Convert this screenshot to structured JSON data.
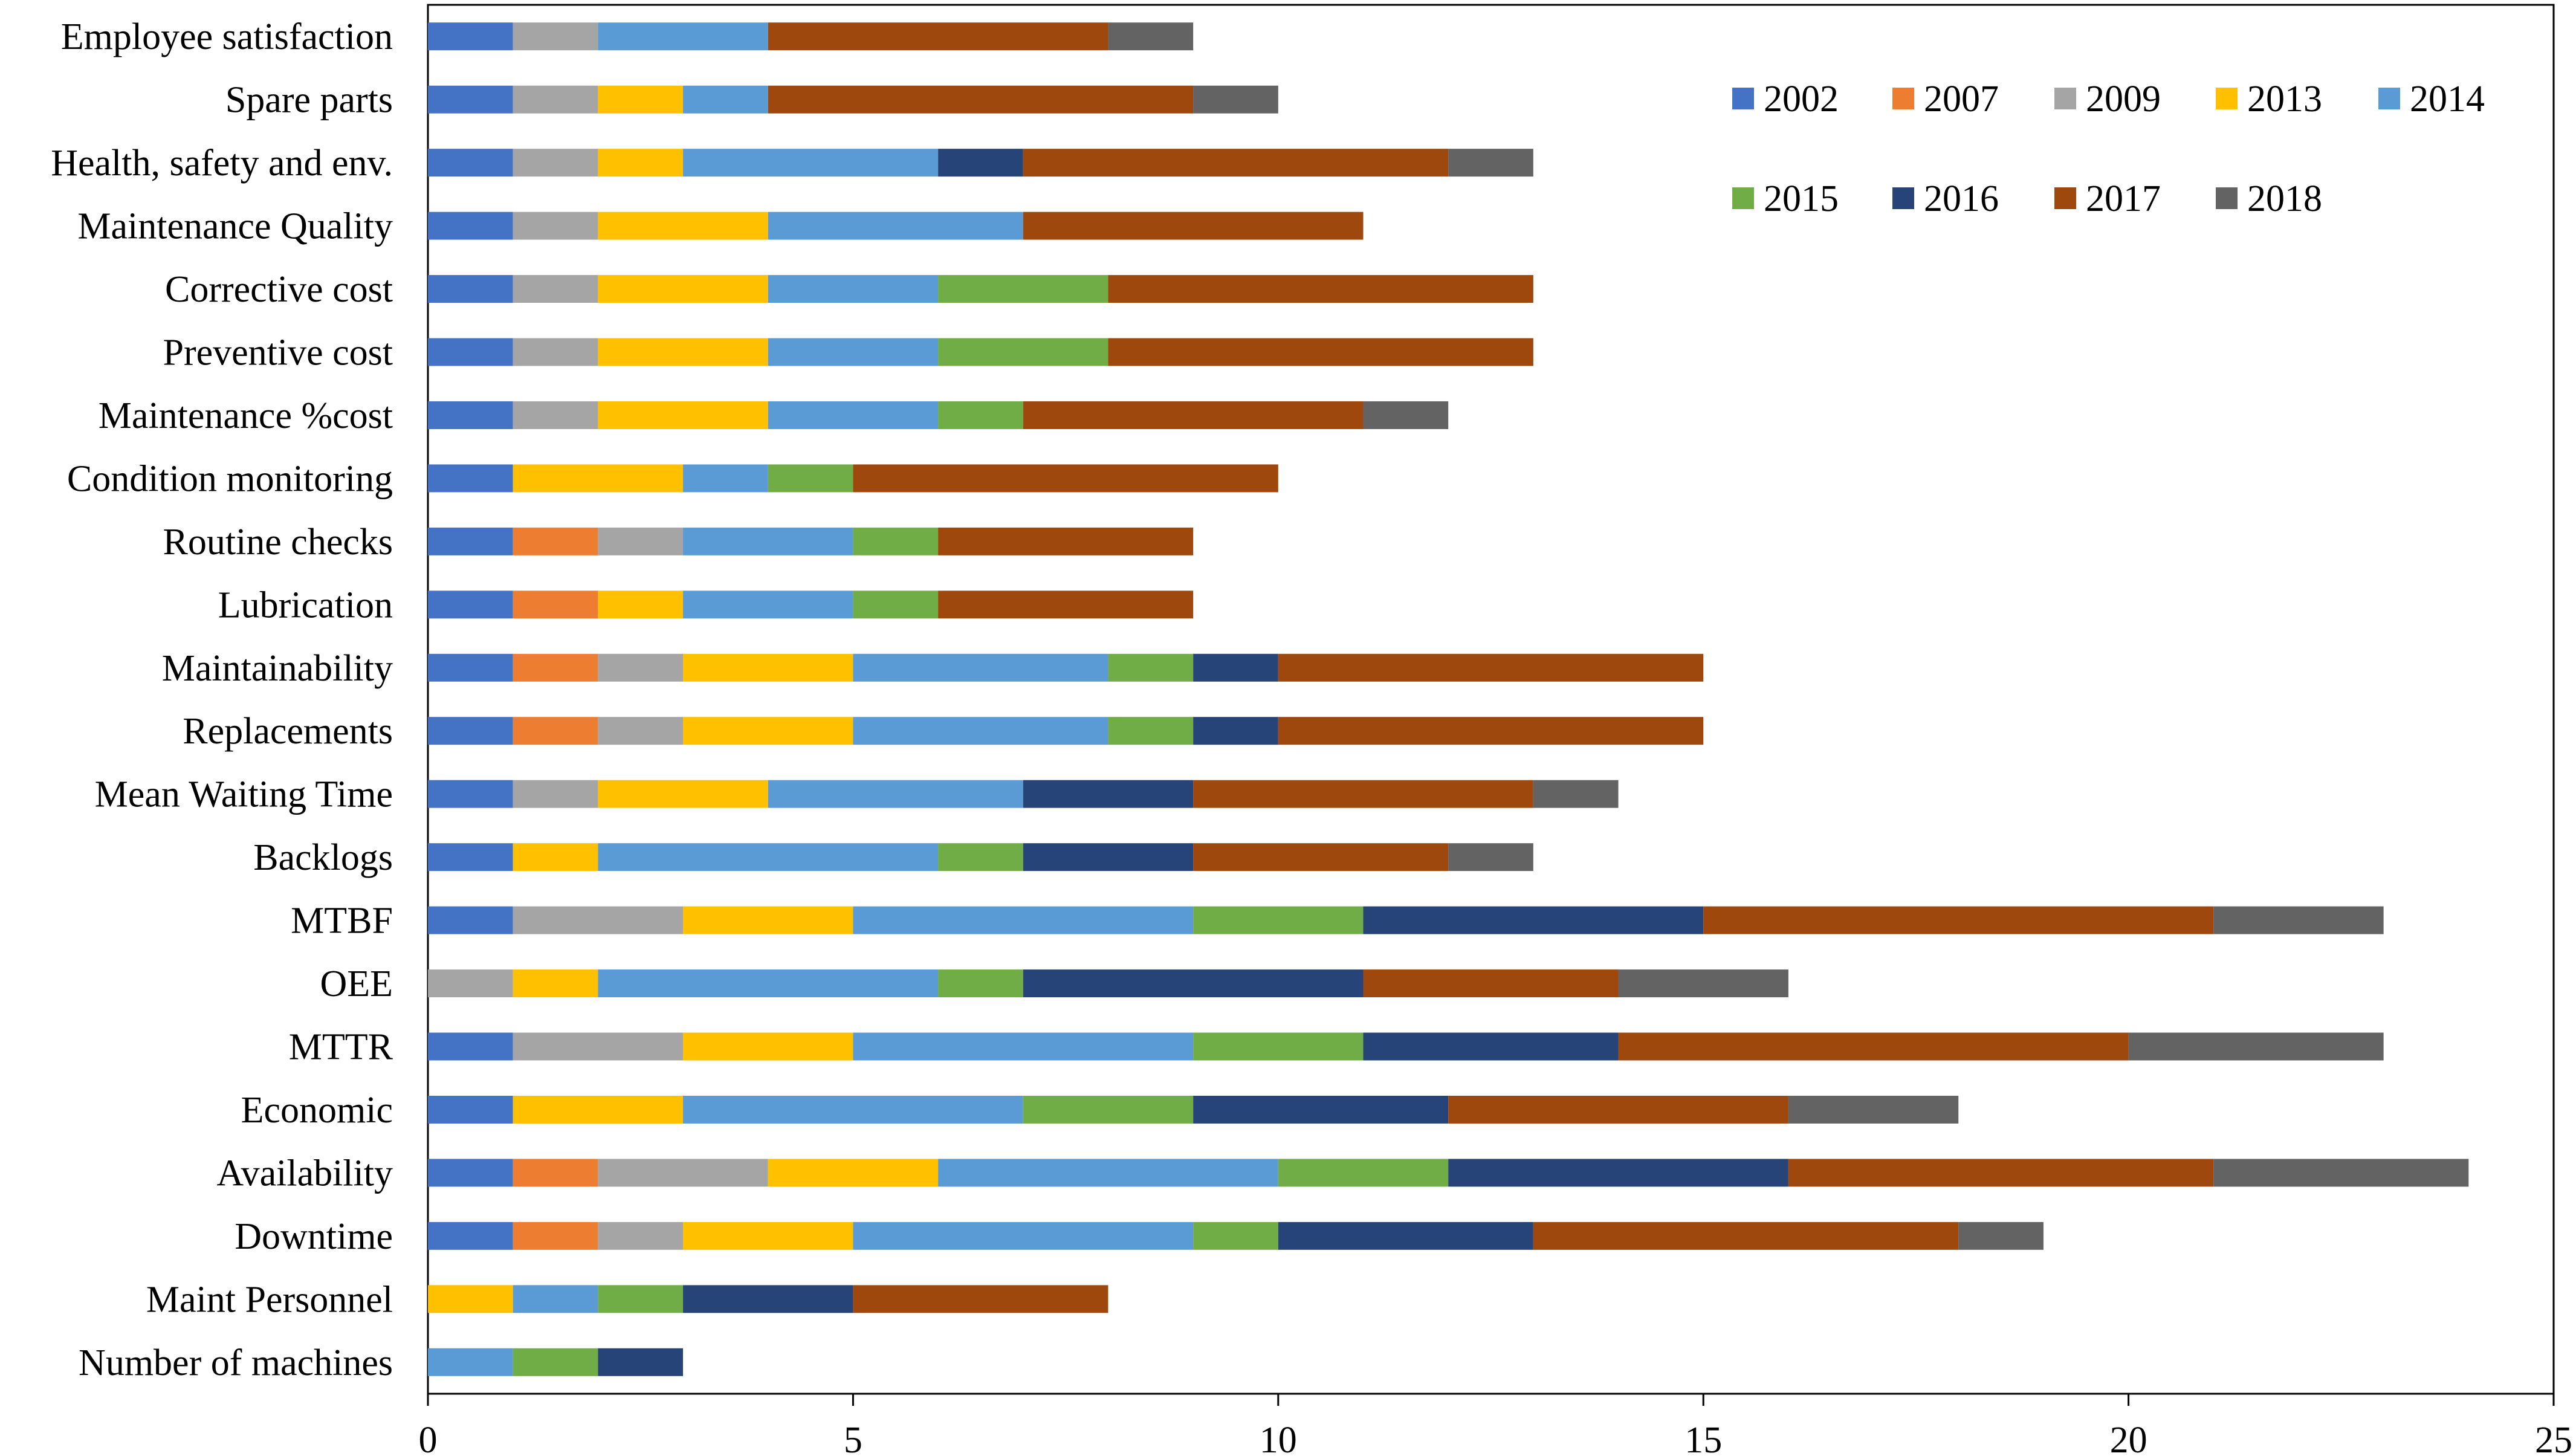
{
  "chart_data": {
    "type": "bar",
    "orientation": "horizontal",
    "stacked": true,
    "title": "",
    "xlabel": "",
    "ylabel": "",
    "xlim": [
      0,
      25
    ],
    "xticks": [
      "0",
      "5",
      "10",
      "15",
      "20",
      "25"
    ],
    "grid": false,
    "legend_position": "top-right",
    "categories": [
      "Employee satisfaction",
      "Spare parts",
      "Health, safety and env.",
      "Maintenance Quality",
      "Corrective cost",
      "Preventive cost",
      "Maintenance %cost",
      "Condition monitoring",
      "Routine checks",
      "Lubrication",
      "Maintainability",
      "Replacements",
      "Mean Waiting Time",
      "Backlogs",
      "MTBF",
      "OEE",
      "MTTR",
      "Economic",
      "Availability",
      "Downtime",
      "Maint Personnel",
      "Number of machines"
    ],
    "series": [
      {
        "name": "2002",
        "color": "#4472C4",
        "values": [
          1,
          1,
          1,
          1,
          1,
          1,
          1,
          1,
          1,
          1,
          1,
          1,
          1,
          1,
          1,
          0,
          1,
          1,
          1,
          1,
          0,
          0
        ]
      },
      {
        "name": "2007",
        "color": "#ED7D31",
        "values": [
          0,
          0,
          0,
          0,
          0,
          0,
          0,
          0,
          1,
          1,
          1,
          1,
          0,
          0,
          0,
          0,
          0,
          0,
          1,
          1,
          0,
          0
        ]
      },
      {
        "name": "2009",
        "color": "#A5A5A5",
        "values": [
          1,
          1,
          1,
          1,
          1,
          1,
          1,
          0,
          1,
          0,
          1,
          1,
          1,
          0,
          2,
          1,
          2,
          0,
          2,
          1,
          0,
          0
        ]
      },
      {
        "name": "2013",
        "color": "#FFC000",
        "values": [
          0,
          1,
          1,
          2,
          2,
          2,
          2,
          2,
          0,
          1,
          2,
          2,
          2,
          1,
          2,
          1,
          2,
          2,
          2,
          2,
          1,
          0
        ]
      },
      {
        "name": "2014",
        "color": "#5B9BD5",
        "values": [
          2,
          1,
          3,
          3,
          2,
          2,
          2,
          1,
          2,
          2,
          3,
          3,
          3,
          4,
          4,
          4,
          4,
          4,
          4,
          4,
          1,
          1
        ]
      },
      {
        "name": "2015",
        "color": "#70AD47",
        "values": [
          0,
          0,
          0,
          0,
          2,
          2,
          1,
          1,
          1,
          1,
          1,
          1,
          0,
          1,
          2,
          1,
          2,
          2,
          2,
          1,
          1,
          1
        ]
      },
      {
        "name": "2016",
        "color": "#264478",
        "values": [
          0,
          0,
          1,
          0,
          0,
          0,
          0,
          0,
          0,
          0,
          1,
          1,
          2,
          2,
          4,
          4,
          3,
          3,
          4,
          3,
          2,
          1
        ]
      },
      {
        "name": "2017",
        "color": "#9E480E",
        "values": [
          4,
          5,
          5,
          4,
          5,
          5,
          4,
          5,
          3,
          3,
          5,
          5,
          4,
          3,
          6,
          3,
          6,
          4,
          5,
          5,
          3,
          0
        ]
      },
      {
        "name": "2018",
        "color": "#636363",
        "values": [
          1,
          1,
          1,
          0,
          0,
          0,
          1,
          0,
          0,
          0,
          0,
          0,
          1,
          1,
          2,
          2,
          3,
          2,
          3,
          1,
          0,
          0
        ]
      }
    ]
  }
}
